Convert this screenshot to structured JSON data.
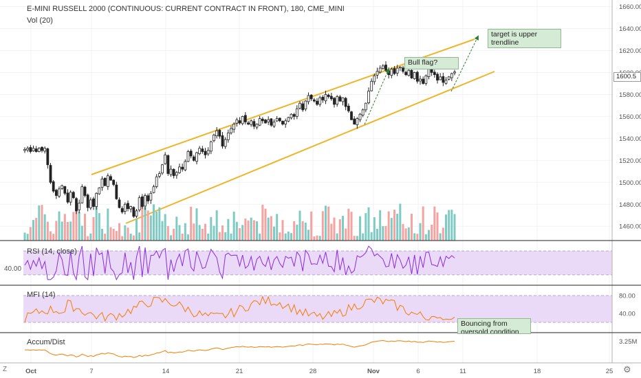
{
  "header": {
    "symbol_line": "E-MINI RUSSELL 2000 (CONTINUOUS: CURRENT CONTRACT IN FRONT), 180, CME_MINI",
    "vol_label": "Vol (20)"
  },
  "panes": {
    "rsi_label": "RSI (14, close)",
    "mfi_label": "MFI (14)",
    "ad_label": "Accum/Dist",
    "rsi_left_value": "40.00"
  },
  "price_tag": "1600.5",
  "annotations": {
    "target_note": "target is upper trendline",
    "flag_note": "Bull flag?",
    "bounce_note": "Bouncing from oversold condition"
  },
  "corner": {
    "left": "Z",
    "right": "⚙"
  },
  "colors": {
    "up_candle": "#ffffff",
    "down_candle": "#222222",
    "vol_up": "#7ecbc3",
    "vol_down": "#f4a3a0",
    "trendline": "#f0b429",
    "rsi_line": "#8a2be2",
    "rsi_band": "#ead9f7",
    "mfi_line": "#f57c00",
    "mfi_band": "#ead9f7",
    "ad_line": "#f57c00",
    "arrow": "#2e7d32"
  },
  "chart_data": {
    "type": "candlestick",
    "title": "E-MINI RUSSELL 2000 (CONTINUOUS: CURRENT CONTRACT IN FRONT), 180, CME_MINI",
    "y_ticks": [
      1460,
      1480,
      1500,
      1520,
      1540,
      1560,
      1580,
      1600,
      1620,
      1640,
      1660
    ],
    "ylim": [
      1447,
      1666
    ],
    "x_ticks": [
      "Oct",
      "7",
      "14",
      "21",
      "28",
      "Nov",
      "6",
      "11",
      "18",
      "25"
    ],
    "last_price": 1600.5,
    "close_path": [
      1530,
      1531,
      1528,
      1531,
      1528,
      1531,
      1529,
      1531,
      1516,
      1500,
      1492,
      1488,
      1494,
      1497,
      1490,
      1482,
      1491,
      1486,
      1474,
      1481,
      1496,
      1488,
      1477,
      1484,
      1478,
      1490,
      1495,
      1503,
      1497,
      1506,
      1502,
      1498,
      1485,
      1477,
      1473,
      1480,
      1476,
      1478,
      1469,
      1474,
      1486,
      1478,
      1488,
      1483,
      1490,
      1496,
      1505,
      1508,
      1516,
      1525,
      1508,
      1512,
      1506,
      1509,
      1514,
      1512,
      1519,
      1528,
      1524,
      1520,
      1527,
      1531,
      1528,
      1525,
      1529,
      1537,
      1543,
      1547,
      1542,
      1533,
      1539,
      1545,
      1549,
      1553,
      1557,
      1554,
      1560,
      1555,
      1553,
      1556,
      1551,
      1553,
      1558,
      1556,
      1554,
      1557,
      1552,
      1555,
      1558,
      1556,
      1553,
      1556,
      1559,
      1562,
      1560,
      1567,
      1572,
      1566,
      1574,
      1579,
      1576,
      1574,
      1571,
      1577,
      1575,
      1580,
      1578,
      1576,
      1571,
      1578,
      1574,
      1577,
      1569,
      1565,
      1557,
      1553,
      1558,
      1562,
      1566,
      1572,
      1583,
      1592,
      1597,
      1601,
      1604,
      1606,
      1602,
      1598,
      1603,
      1599,
      1604,
      1605,
      1601,
      1598,
      1602,
      1595,
      1600,
      1592,
      1594,
      1590,
      1597,
      1603,
      1600,
      1598,
      1593,
      1596,
      1591,
      1593,
      1596,
      1599,
      1600.5
    ],
    "rsi": {
      "band": [
        30,
        70
      ],
      "ylim": [
        15,
        85
      ],
      "left_label": 40
    },
    "mfi": {
      "band": [
        20,
        80
      ],
      "ylim": [
        0,
        100
      ],
      "ticks": [
        40,
        80
      ]
    },
    "accum_dist": {
      "ticks_label": "3.25M"
    }
  }
}
